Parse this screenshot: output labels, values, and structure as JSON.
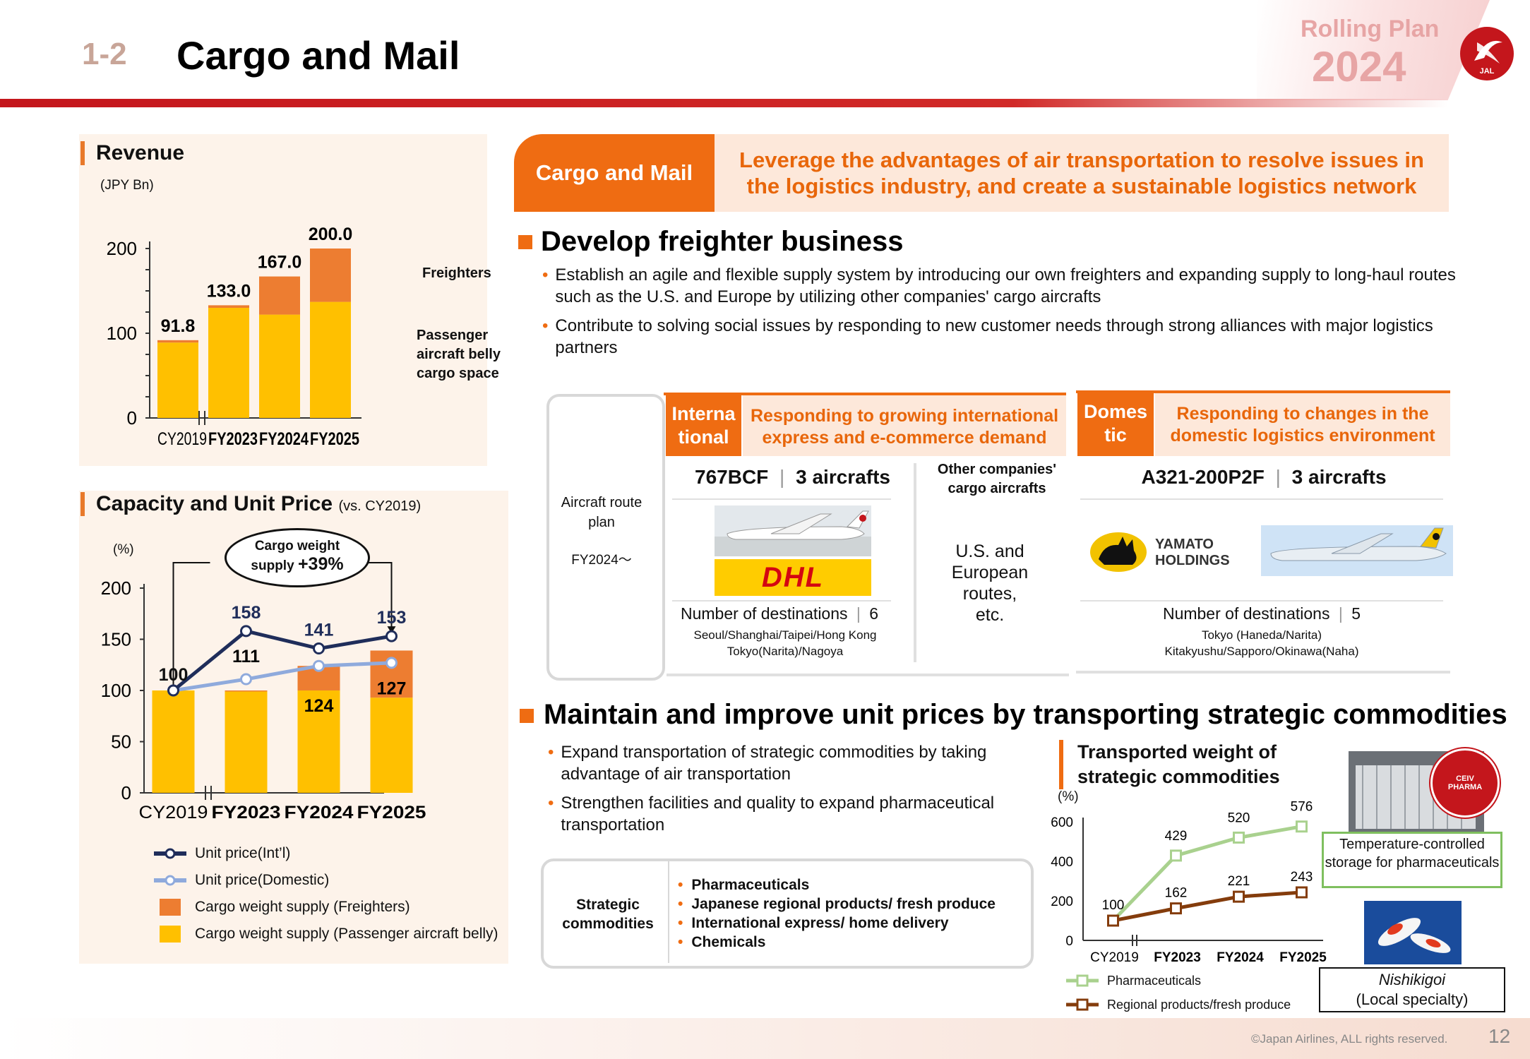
{
  "header": {
    "section_number": "1-2",
    "title": "Cargo and Mail",
    "rolling_plan_label": "Rolling Plan",
    "rolling_plan_year": "2024",
    "logo_text": "JAL"
  },
  "revenue_panel": {
    "title": "Revenue",
    "unit": "(JPY Bn)",
    "label_freighters": "Freighters",
    "label_passenger": "Passenger aircraft belly cargo space"
  },
  "capacity_panel": {
    "title": "Capacity and Unit Price",
    "title_suffix": "(vs. CY2019)",
    "unit": "(%)",
    "callout_line1": "Cargo weight",
    "callout_line2": "supply",
    "callout_value": "+39%",
    "legend": [
      "Unit price(Int’l)",
      "Unit price(Domestic)",
      "Cargo weight supply (Freighters)",
      "Cargo weight supply (Passenger aircraft belly)"
    ]
  },
  "banner": {
    "left": "Cargo and Mail",
    "right_line1": "Leverage the advantages of air transportation to resolve issues in",
    "right_line2": "the logistics industry, and create a sustainable logistics network"
  },
  "freighter_section": {
    "heading": "Develop freighter business",
    "bullets": [
      "Establish an agile and flexible supply system by introducing our own freighters and expanding supply to long-haul routes such as the U.S. and Europe by utilizing other companies' cargo aircrafts",
      "Contribute to solving social issues by responding to new customer needs through strong alliances with major logistics partners"
    ],
    "route_plan_label": "Aircraft route plan",
    "route_plan_period": "FY2024～",
    "international": {
      "tag": "Interna tional",
      "tag_line1": "Interna",
      "tag_line2": "tional",
      "desc_line1": "Responding to growing international",
      "desc_line2": "express and e-commerce demand",
      "aircraft": "767BCF",
      "aircraft_count": "3 aircrafts",
      "logo_text": "DHL",
      "destinations_label": "Number of destinations",
      "destinations_count": "6",
      "cities_line1": "Seoul/Shanghai/Taipei/Hong Kong",
      "cities_line2": "Tokyo(Narita)/Nagoya"
    },
    "other_companies": {
      "header_line1": "Other companies'",
      "header_line2": "cargo aircrafts",
      "routes_line1": "U.S. and",
      "routes_line2": "European",
      "routes_line3": "routes,",
      "routes_line4": "etc."
    },
    "domestic": {
      "tag_line1": "Domes",
      "tag_line2": "tic",
      "desc_line1": "Responding to changes in the",
      "desc_line2": "domestic logistics environment",
      "aircraft": "A321-200P2F",
      "aircraft_count": "3 aircrafts",
      "logo_line1": "YAMATO",
      "logo_line2": "HOLDINGS",
      "destinations_label": "Number of destinations",
      "destinations_count": "5",
      "cities_line1": "Tokyo (Haneda/Narita)",
      "cities_line2": "Kitakyushu/Sapporo/Okinawa(Naha)"
    }
  },
  "commodities_section": {
    "heading": "Maintain and improve unit prices by transporting strategic commodities",
    "bullets": [
      "Expand transportation of strategic commodities by taking advantage of air transportation",
      "Strengthen facilities and quality to expand pharmaceutical transportation"
    ],
    "box_label_line1": "Strategic",
    "box_label_line2": "commodities",
    "items": [
      "Pharmaceuticals",
      "Japanese regional products/ fresh produce",
      "International express/ home delivery",
      "Chemicals"
    ],
    "chart_title_line1": "Transported weight of",
    "chart_title_line2": "strategic commodities",
    "chart_unit": "(%)",
    "legend": [
      "Pharmaceuticals",
      "Regional products/fresh produce"
    ],
    "photo1_caption": "Temperature-controlled storage for pharmaceuticals",
    "photo2_caption_line1": "Nishikigoi",
    "photo2_caption_line2": "(Local specialty)",
    "ceiv_text": "CEIV PHARMA"
  },
  "footer": {
    "copyright": "©Japan Airlines, ALL rights reserved.",
    "page_number": "12"
  },
  "colors": {
    "orange": "#ef6c12",
    "yellow": "#ffc000",
    "bar_orange": "#ed7d31",
    "navy": "#1f2d5a",
    "light_blue": "#8faadc",
    "green": "#a9d18e",
    "brown": "#843c0c",
    "red": "#c4161c"
  },
  "chart_data": [
    {
      "type": "bar",
      "title": "Revenue",
      "ylabel": "(JPY Bn)",
      "categories": [
        "CY2019",
        "FY2023",
        "FY2024",
        "FY2025"
      ],
      "ylim": [
        0,
        200
      ],
      "yticks": [
        0,
        100,
        200
      ],
      "stacked": true,
      "totals": [
        91.8,
        133.0,
        167.0,
        200.0
      ],
      "total_labels": [
        "91.8",
        "133.0",
        "167.0",
        "200.0"
      ],
      "series": [
        {
          "name": "Passenger aircraft belly cargo space",
          "values": [
            89,
            130,
            122,
            137
          ]
        },
        {
          "name": "Freighters",
          "values": [
            2.8,
            3.0,
            45.0,
            63.0
          ]
        }
      ]
    },
    {
      "type": "bar",
      "title": "Capacity and Unit Price",
      "ylabel": "(%)",
      "categories": [
        "CY2019",
        "FY2023",
        "FY2024",
        "FY2025"
      ],
      "ylim": [
        0,
        200
      ],
      "yticks": [
        0,
        50,
        100,
        150,
        200
      ],
      "stacked": true,
      "series": [
        {
          "name": "Cargo weight supply (Passenger aircraft belly)",
          "values": [
            100,
            99,
            100,
            93
          ]
        },
        {
          "name": "Cargo weight supply (Freighters)",
          "values": [
            0,
            1,
            24,
            46
          ]
        },
        {
          "name": "Unit price(Int’l)",
          "type": "line",
          "values": [
            100,
            158,
            141,
            153
          ]
        },
        {
          "name": "Unit price(Domestic)",
          "type": "line",
          "values": [
            100,
            111,
            124,
            127
          ]
        }
      ],
      "bar_total_labels": [
        "",
        "",
        "124",
        "127"
      ],
      "intl_labels": [
        "100",
        "158",
        "141",
        "153"
      ],
      "domestic_labels": [
        "",
        "111",
        "",
        ""
      ]
    },
    {
      "type": "line",
      "title": "Transported weight of strategic commodities",
      "ylabel": "(%)",
      "categories": [
        "CY2019",
        "FY2023",
        "FY2024",
        "FY2025"
      ],
      "ylim": [
        0,
        600
      ],
      "yticks": [
        0,
        200,
        400,
        600
      ],
      "series": [
        {
          "name": "Pharmaceuticals",
          "values": [
            100,
            429,
            520,
            576
          ]
        },
        {
          "name": "Regional products/fresh produce",
          "values": [
            100,
            162,
            221,
            243
          ]
        }
      ]
    }
  ]
}
